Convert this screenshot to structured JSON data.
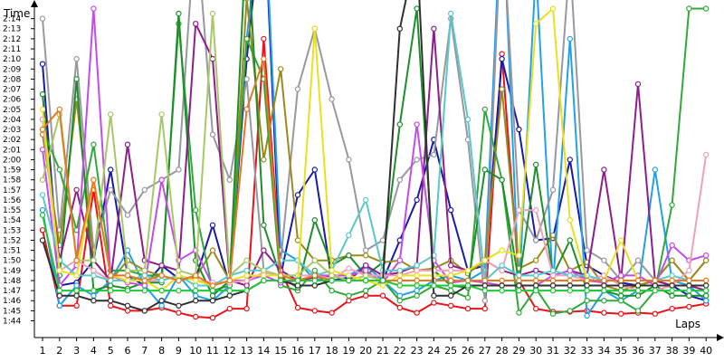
{
  "chart_data": {
    "type": "line",
    "xlabel": "Laps",
    "ylabel": "Time",
    "x_ticks": [
      "1",
      "2",
      "3",
      "4",
      "5",
      "6",
      "7",
      "8",
      "9",
      "10",
      "11",
      "12",
      "13",
      "14",
      "15",
      "16",
      "17",
      "18",
      "19",
      "20",
      "21",
      "22",
      "23",
      "24",
      "25",
      "26",
      "27",
      "28",
      "29",
      "30",
      "31",
      "32",
      "33",
      "34",
      "35",
      "36",
      "37",
      "38",
      "39",
      "40"
    ],
    "y_ticks": [
      "1:44",
      "1:45",
      "1:46",
      "1:47",
      "1:48",
      "1:49",
      "1:50",
      "1:51",
      "1:52",
      "1:53",
      "1:54",
      "1:55",
      "1:56",
      "1:57",
      "1:58",
      "1:59",
      "2:00",
      "2:01",
      "2:02",
      "2:03",
      "2:04",
      "2:05",
      "2:06",
      "2:07",
      "2:08",
      "2:09",
      "2:10",
      "2:11",
      "2:12",
      "2:13",
      "2:14"
    ],
    "ylim": [
      104,
      136
    ],
    "xlim": [
      0.5,
      40
    ],
    "grid": false,
    "series": [
      {
        "color": "#e8141a",
        "values": [
          113,
          105.5,
          105.5,
          117,
          105.5,
          105,
          105,
          105.3,
          104.8,
          104.4,
          104.3,
          105.2,
          105.2,
          132,
          109,
          105.3,
          105,
          104.8,
          106,
          106.5,
          106.5,
          105.3,
          104.8,
          105.8,
          105.5,
          105.2,
          105.2,
          130.5,
          108,
          105.2,
          104.9,
          104.9,
          105,
          104.8,
          104.7,
          104.8,
          104.7,
          105.2,
          105.4,
          105.7
        ]
      },
      {
        "color": "#1a1aa8",
        "values": [
          129.5,
          107.5,
          107.8,
          110,
          119,
          108.5,
          107.5,
          109.5,
          108.2,
          108.2,
          113.5,
          107.5,
          130,
          146,
          108.5,
          116.5,
          119,
          108,
          108.3,
          109.5,
          108,
          112,
          116,
          122,
          115,
          109,
          109.5,
          130,
          123,
          112,
          112.2,
          120,
          109.5,
          108.5,
          107.8,
          107.5,
          108,
          107.5,
          106.5,
          106
        ]
      },
      {
        "color": "#22a0e8",
        "values": [
          115,
          105.5,
          107.5,
          106.5,
          108,
          111,
          107.5,
          105.5,
          108.5,
          106.5,
          106,
          107.5,
          132,
          147,
          111,
          110,
          108,
          108.5,
          108.5,
          109.5,
          108,
          106.5,
          107,
          108,
          108.5,
          108,
          109,
          147,
          107,
          139,
          107.5,
          132,
          104.5,
          107,
          106,
          107,
          119,
          108,
          107.5,
          106
        ]
      },
      {
        "color": "#9898a0",
        "values": [
          134,
          113,
          130,
          111,
          117,
          114.5,
          117,
          118,
          119,
          144,
          122.5,
          118,
          128,
          109,
          110,
          127,
          133,
          126,
          120,
          111,
          112,
          118,
          120,
          120.5,
          134,
          122,
          106,
          145,
          115,
          112,
          117,
          140,
          111,
          110,
          108,
          110,
          108,
          110,
          108,
          110
        ]
      },
      {
        "color": "#9a8a1e",
        "values": [
          122.5,
          111.5,
          126,
          110,
          108,
          110,
          109,
          108.5,
          108,
          108.3,
          111,
          108,
          136,
          120,
          129,
          112,
          110,
          110,
          110.5,
          110.5,
          109.8,
          110,
          109,
          109.2,
          110,
          108.7,
          110,
          127,
          109.2,
          110,
          112.5,
          109,
          109.8,
          107.5,
          107,
          107.5,
          108,
          110,
          108,
          110
        ]
      },
      {
        "color": "#32a83a",
        "values": [
          123,
          119,
          113,
          121.5,
          109,
          109,
          108.5,
          108.5,
          133.5,
          115,
          107,
          107.5,
          132,
          128,
          107.5,
          107,
          109,
          107,
          106.5,
          107,
          108,
          106,
          106.5,
          107.5,
          107,
          106.3,
          125,
          118,
          104.8,
          107.2,
          104.7,
          105,
          106,
          106,
          106,
          105,
          107,
          115.5,
          135,
          135
        ]
      },
      {
        "color": "#1e8e2a",
        "values": [
          126.5,
          108.5,
          128,
          107,
          107.5,
          107.2,
          107.8,
          107.8,
          134.5,
          110,
          106.5,
          108,
          143,
          113.5,
          108.3,
          107.3,
          114,
          109.5,
          110.5,
          108.5,
          109.8,
          123.5,
          135,
          109,
          107.5,
          107.3,
          119,
          118,
          107.8,
          119.5,
          108.5,
          112,
          107,
          107,
          106.5,
          106.5,
          107.5,
          106.5,
          106.5,
          106.5
        ]
      },
      {
        "color": "#8e1e8a",
        "values": [
          124,
          110,
          117,
          110,
          108,
          121.5,
          110,
          109.5,
          109,
          133.5,
          130,
          108,
          107.5,
          111,
          109,
          108,
          108.3,
          108.5,
          108,
          109.5,
          108.5,
          108.8,
          109.5,
          133,
          109.5,
          109,
          110,
          109,
          108.5,
          109,
          108.5,
          109,
          108.5,
          119,
          108,
          127.5,
          108,
          107.5,
          107.5,
          107
        ]
      },
      {
        "color": "#c44ce8",
        "values": [
          121,
          107.5,
          109.5,
          135,
          108.5,
          107.8,
          107.5,
          118,
          110,
          111,
          107.5,
          108,
          108,
          108.5,
          107.8,
          108,
          108.5,
          108.5,
          108.5,
          109,
          107.8,
          110,
          123.5,
          110,
          107.8,
          108,
          107.8,
          107.5,
          107.5,
          107.5,
          108.5,
          109,
          108,
          107.8,
          108.5,
          108.5,
          107.5,
          111.5,
          110,
          110.5
        ]
      },
      {
        "color": "#f0a0b8",
        "values": [
          124,
          109,
          110,
          109,
          108,
          108,
          108,
          108,
          108.5,
          108,
          107.8,
          107.8,
          108,
          108.8,
          108.5,
          108.5,
          108.5,
          108.2,
          109.2,
          108.5,
          108.5,
          108.5,
          109,
          109,
          109,
          109,
          110,
          109,
          115,
          115,
          108.5,
          108.5,
          108,
          108.5,
          107.5,
          107,
          107,
          107.5,
          109,
          120.5
        ]
      },
      {
        "color": "#58c8c8",
        "values": [
          116.5,
          110,
          108.5,
          108.5,
          108,
          108,
          108.5,
          108,
          108.5,
          107.5,
          107.5,
          108.5,
          109,
          109,
          110,
          110,
          108.5,
          109,
          112.5,
          116,
          109,
          109,
          109.5,
          110.5,
          134.5,
          124,
          108,
          109.5,
          108.5,
          108.5,
          109,
          108.5,
          108.5,
          108,
          108,
          108,
          108,
          108.5,
          108,
          108
        ]
      },
      {
        "color": "#a8c868",
        "values": [
          118,
          124.5,
          110,
          110,
          124.5,
          109,
          109,
          124.5,
          109,
          108.5,
          134.5,
          108.5,
          110,
          109,
          108.5,
          108.5,
          110,
          108.5,
          108,
          108.5,
          108,
          108,
          108,
          108,
          108,
          108,
          108,
          108,
          108,
          108,
          108,
          108,
          108,
          108,
          108,
          108,
          108,
          108,
          108,
          108
        ]
      },
      {
        "color": "#e8e020",
        "values": [
          125,
          109,
          108.5,
          118,
          108.5,
          108,
          108,
          107,
          108.5,
          108,
          107.5,
          108,
          108.5,
          108.5,
          108.5,
          108,
          133,
          109,
          108.5,
          108,
          107.5,
          108.5,
          108.5,
          108.5,
          108.5,
          109,
          110,
          111,
          110.5,
          133.5,
          135,
          114,
          108,
          108,
          112,
          108,
          108,
          108,
          108,
          108
        ]
      },
      {
        "color": "#e87820",
        "values": [
          123,
          125,
          110,
          118,
          108.5,
          108.5,
          108,
          108.5,
          108,
          108.5,
          107.5,
          108,
          125,
          130,
          108.5,
          108,
          108.5,
          108,
          108,
          108,
          108,
          108,
          108,
          108,
          108,
          108,
          108,
          108,
          108,
          108,
          108,
          108,
          108,
          108,
          108,
          108,
          108,
          108,
          108,
          108
        ]
      },
      {
        "color": "#303030",
        "values": [
          112,
          106.5,
          106.5,
          106,
          106,
          105.5,
          105,
          106,
          105.5,
          106,
          106,
          106.5,
          107,
          108,
          108,
          107.5,
          107.5,
          108,
          108,
          108,
          108,
          133,
          141,
          106.5,
          106.5,
          107.5,
          107.5,
          107.5,
          107.5,
          107.5,
          107.5,
          107.5,
          107.5,
          107.5,
          107.5,
          107.5,
          107.5,
          107.5,
          107.5,
          107.5
        ]
      },
      {
        "color": "#1ec838",
        "values": [
          114.5,
          107,
          107,
          107,
          107,
          107,
          107,
          107,
          107,
          107,
          107,
          107,
          107,
          108,
          108,
          108,
          108,
          108,
          108,
          108,
          108,
          107.5,
          107.5,
          107.5,
          107.5,
          107.5,
          107,
          107,
          107,
          107,
          107,
          107,
          107,
          107,
          107,
          107,
          107,
          107,
          107,
          107
        ]
      }
    ]
  }
}
